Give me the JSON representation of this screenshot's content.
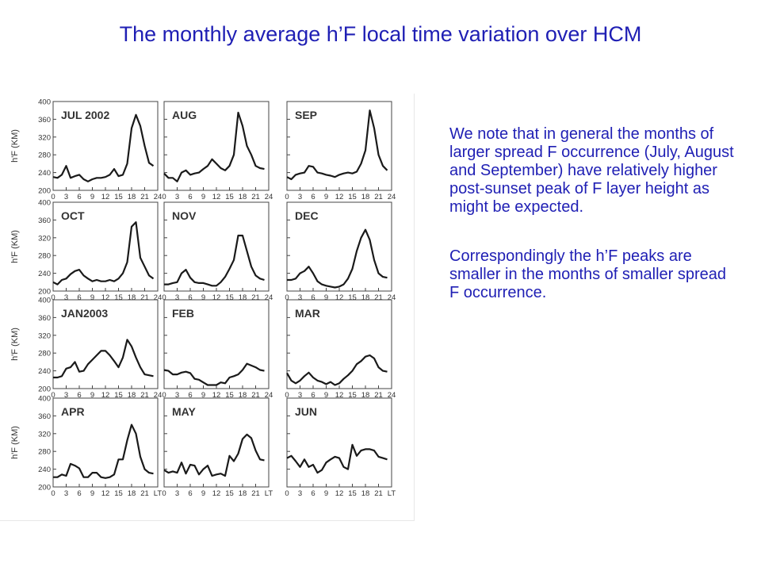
{
  "title": "The monthly average h’F local time variation over HCM",
  "paragraphs": [
    "We note that in general the months of larger spread F occurrence (July, August and September) have relatively higher post-sunset peak of F layer height as might be expected.",
    "Correspondingly the h’F peaks are smaller in the months of smaller spread F occurrence."
  ],
  "colors": {
    "text": "#1f1fb4",
    "line": "#1a1a1a",
    "axis": "#444444"
  },
  "chart_data": {
    "type": "line",
    "ylabel": "h'F (KM)",
    "yticks": [
      "400",
      "360",
      "320",
      "280",
      "240",
      "200"
    ],
    "ylim": [
      200,
      400
    ],
    "xlim": [
      0,
      24
    ],
    "xticks_hours": [
      "0",
      "3",
      "6",
      "9",
      "12",
      "15",
      "18",
      "21",
      "24"
    ],
    "xticks_lt": [
      "0",
      "3",
      "6",
      "9",
      "12",
      "15",
      "18",
      "21",
      "LT"
    ],
    "panels": [
      {
        "name": "JUL 2002",
        "row": 0,
        "col": 0,
        "x": [
          0,
          1,
          2,
          3,
          4,
          5,
          6,
          7,
          8,
          9,
          10,
          11,
          12,
          13,
          14,
          15,
          16,
          17,
          18,
          19,
          20,
          21,
          22,
          23
        ],
        "y": [
          230,
          228,
          235,
          255,
          228,
          232,
          235,
          225,
          220,
          225,
          228,
          228,
          230,
          235,
          248,
          232,
          235,
          260,
          340,
          370,
          345,
          300,
          262,
          255
        ]
      },
      {
        "name": "AUG",
        "row": 0,
        "col": 1,
        "x": [
          0,
          1,
          2,
          3,
          4,
          5,
          6,
          7,
          8,
          9,
          10,
          11,
          12,
          13,
          14,
          15,
          16,
          17,
          18,
          19,
          20,
          21,
          22,
          23
        ],
        "y": [
          238,
          228,
          228,
          220,
          240,
          245,
          235,
          238,
          240,
          248,
          255,
          270,
          260,
          250,
          245,
          255,
          280,
          375,
          345,
          300,
          280,
          255,
          250,
          248
        ]
      },
      {
        "name": "SEP",
        "row": 0,
        "col": 2,
        "x": [
          0,
          1,
          2,
          3,
          4,
          5,
          6,
          7,
          8,
          9,
          10,
          11,
          12,
          13,
          14,
          15,
          16,
          17,
          18,
          19,
          20,
          21,
          22,
          23
        ],
        "y": [
          230,
          225,
          235,
          238,
          240,
          255,
          253,
          240,
          238,
          235,
          233,
          230,
          235,
          238,
          240,
          238,
          242,
          260,
          290,
          380,
          340,
          280,
          255,
          245
        ]
      },
      {
        "name": "OCT",
        "row": 1,
        "col": 0,
        "x": [
          0,
          1,
          2,
          3,
          4,
          5,
          6,
          7,
          8,
          9,
          10,
          11,
          12,
          13,
          14,
          15,
          16,
          17,
          18,
          19,
          20,
          21,
          22,
          23
        ],
        "y": [
          220,
          215,
          225,
          228,
          238,
          245,
          248,
          235,
          228,
          222,
          225,
          222,
          222,
          225,
          222,
          228,
          240,
          265,
          345,
          355,
          275,
          255,
          235,
          228
        ]
      },
      {
        "name": "NOV",
        "row": 1,
        "col": 1,
        "x": [
          0,
          1,
          2,
          3,
          4,
          5,
          6,
          7,
          8,
          9,
          10,
          11,
          12,
          13,
          14,
          15,
          16,
          17,
          18,
          19,
          20,
          21,
          22,
          23
        ],
        "y": [
          215,
          215,
          218,
          220,
          240,
          248,
          230,
          220,
          218,
          218,
          215,
          212,
          212,
          220,
          232,
          250,
          270,
          325,
          325,
          290,
          255,
          235,
          228,
          225
        ]
      },
      {
        "name": "DEC",
        "row": 1,
        "col": 2,
        "x": [
          0,
          1,
          2,
          3,
          4,
          5,
          6,
          7,
          8,
          9,
          10,
          11,
          12,
          13,
          14,
          15,
          16,
          17,
          18,
          19,
          20,
          21,
          22,
          23
        ],
        "y": [
          225,
          225,
          228,
          240,
          245,
          255,
          240,
          222,
          215,
          212,
          210,
          208,
          210,
          215,
          228,
          250,
          290,
          320,
          338,
          315,
          270,
          240,
          232,
          230
        ]
      },
      {
        "name": "JAN2003",
        "row": 2,
        "col": 0,
        "x": [
          0,
          1,
          2,
          3,
          4,
          5,
          6,
          7,
          8,
          9,
          10,
          11,
          12,
          13,
          14,
          15,
          16,
          17,
          18,
          19,
          20,
          21,
          22,
          23
        ],
        "y": [
          225,
          225,
          228,
          245,
          248,
          260,
          238,
          240,
          255,
          265,
          275,
          285,
          285,
          275,
          262,
          248,
          270,
          310,
          295,
          270,
          248,
          232,
          230,
          228
        ]
      },
      {
        "name": "FEB",
        "row": 2,
        "col": 1,
        "x": [
          0,
          1,
          2,
          3,
          4,
          5,
          6,
          7,
          8,
          9,
          10,
          11,
          12,
          13,
          14,
          15,
          16,
          17,
          18,
          19,
          20,
          21,
          22,
          23
        ],
        "y": [
          242,
          240,
          232,
          232,
          236,
          238,
          235,
          222,
          220,
          214,
          208,
          208,
          208,
          214,
          212,
          225,
          228,
          232,
          242,
          256,
          252,
          248,
          242,
          240
        ]
      },
      {
        "name": "MAR",
        "row": 2,
        "col": 2,
        "x": [
          0,
          1,
          2,
          3,
          4,
          5,
          6,
          7,
          8,
          9,
          10,
          11,
          12,
          13,
          14,
          15,
          16,
          17,
          18,
          19,
          20,
          21,
          22,
          23
        ],
        "y": [
          235,
          218,
          212,
          218,
          228,
          236,
          225,
          218,
          215,
          210,
          215,
          208,
          212,
          222,
          230,
          240,
          255,
          262,
          272,
          275,
          268,
          248,
          240,
          238
        ]
      },
      {
        "name": "APR",
        "row": 3,
        "col": 0,
        "x": [
          0,
          1,
          2,
          3,
          4,
          5,
          6,
          7,
          8,
          9,
          10,
          11,
          12,
          13,
          14,
          15,
          16,
          17,
          18,
          19,
          20,
          21,
          22,
          23
        ],
        "y": [
          222,
          222,
          228,
          225,
          252,
          248,
          242,
          222,
          222,
          232,
          232,
          222,
          220,
          222,
          228,
          262,
          262,
          305,
          340,
          320,
          268,
          240,
          232,
          230
        ]
      },
      {
        "name": "MAY",
        "row": 3,
        "col": 1,
        "x": [
          0,
          1,
          2,
          3,
          4,
          5,
          6,
          7,
          8,
          9,
          10,
          11,
          12,
          13,
          14,
          15,
          16,
          17,
          18,
          19,
          20,
          21,
          22,
          23
        ],
        "y": [
          238,
          232,
          235,
          232,
          255,
          230,
          250,
          248,
          228,
          240,
          248,
          225,
          228,
          230,
          225,
          270,
          258,
          275,
          308,
          318,
          310,
          282,
          262,
          260
        ]
      },
      {
        "name": "JUN",
        "row": 3,
        "col": 2,
        "x": [
          0,
          1,
          2,
          3,
          4,
          5,
          6,
          7,
          8,
          9,
          10,
          11,
          12,
          13,
          14,
          15,
          16,
          17,
          18,
          19,
          20,
          21,
          22,
          23
        ],
        "y": [
          265,
          270,
          258,
          245,
          262,
          245,
          250,
          232,
          238,
          255,
          262,
          268,
          265,
          245,
          240,
          295,
          270,
          282,
          285,
          285,
          282,
          268,
          265,
          262
        ]
      }
    ]
  }
}
